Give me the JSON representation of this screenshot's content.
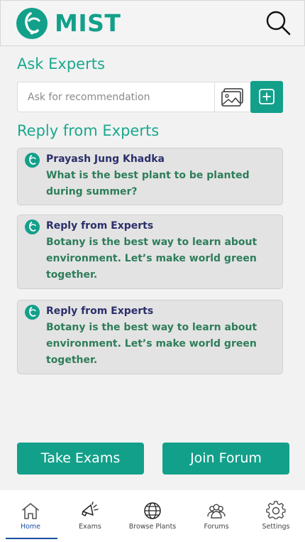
{
  "header": {
    "app_name": "MIST"
  },
  "ask": {
    "title": "Ask Experts",
    "placeholder": "Ask for recommendation"
  },
  "replies": {
    "title": "Reply from Experts",
    "items": [
      {
        "author": "Prayash Jung Khadka",
        "text": "What is the best plant to be planted during summer?"
      },
      {
        "author": "Reply from Experts",
        "text": "Botany is the best way to learn about environment. Let’s make world green together."
      },
      {
        "author": "Reply from Experts",
        "text": "Botany is the best way to learn about environment. Let’s make world green together."
      }
    ]
  },
  "actions": {
    "take_exams": "Take Exams",
    "join_forum": "Join Forum"
  },
  "nav": {
    "items": [
      {
        "label": "Home",
        "icon": "home-icon",
        "active": true
      },
      {
        "label": "Exams",
        "icon": "megaphone-icon",
        "active": false
      },
      {
        "label": "Browse Plants",
        "icon": "globe-icon",
        "active": false
      },
      {
        "label": "Forums",
        "icon": "users-icon",
        "active": false
      },
      {
        "label": "Settings",
        "icon": "gear-icon",
        "active": false
      }
    ]
  },
  "colors": {
    "brand": "#13a08a",
    "heading": "#1ba88e",
    "author": "#2b2f6b",
    "reply_text": "#2e7d5b",
    "active_nav": "#1b4fa0"
  }
}
